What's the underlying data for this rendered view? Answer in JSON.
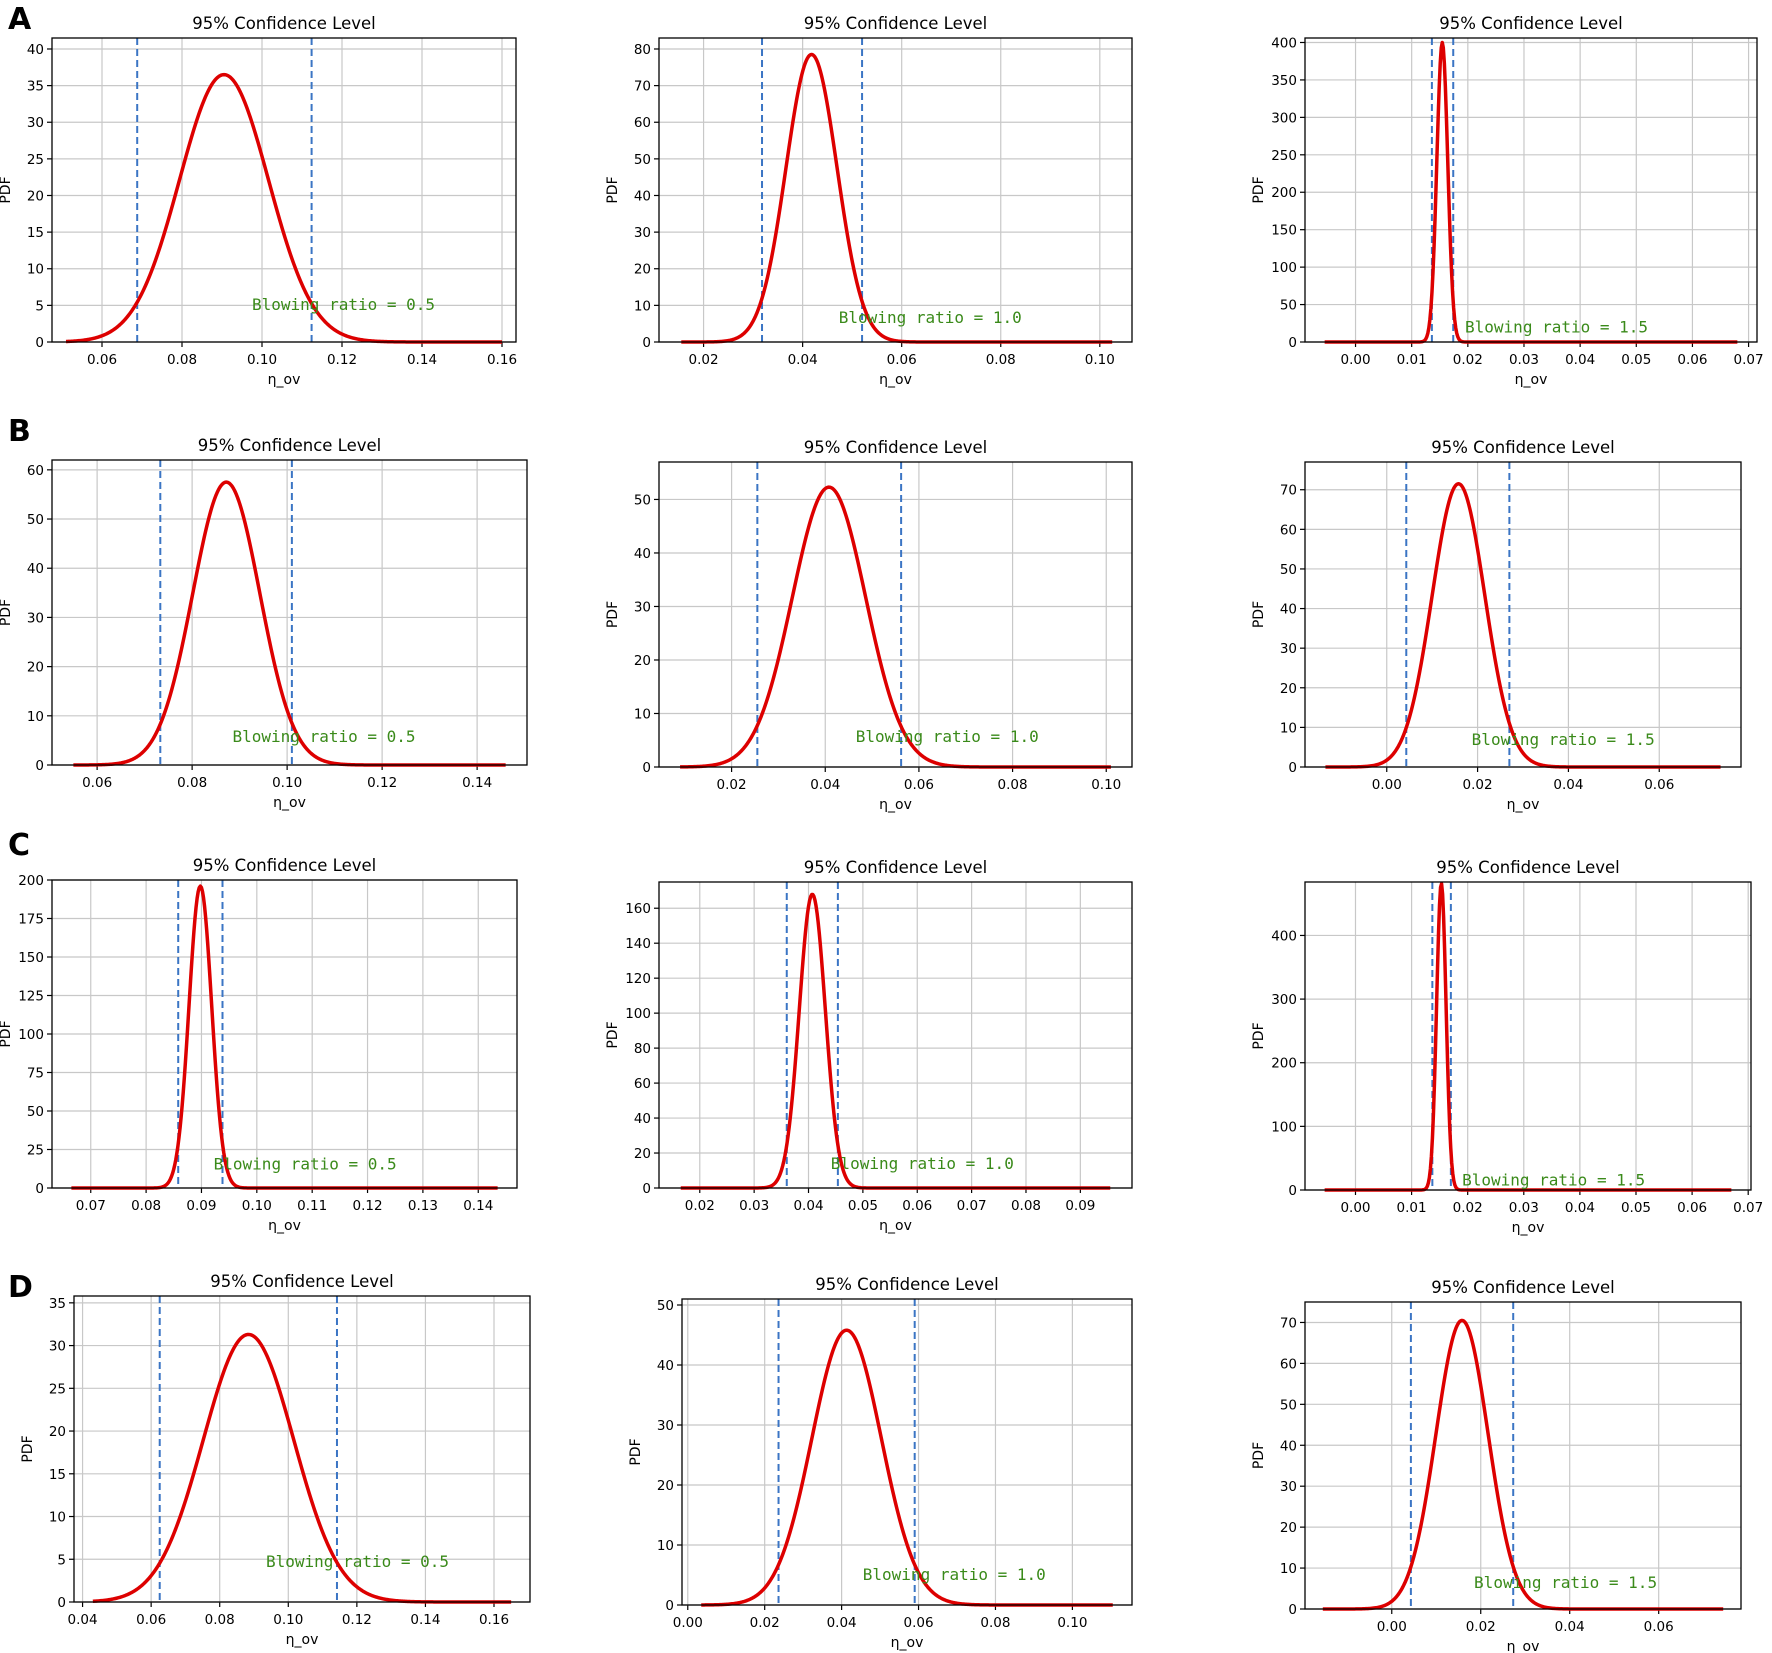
{
  "row_labels": [
    "A",
    "B",
    "C",
    "D"
  ],
  "colors": {
    "curve": "#dd0000",
    "ci_line": "#3b75c4",
    "annotation": "#3a8a1a",
    "grid": "#c8c8c8",
    "axis": "#000000"
  },
  "chart_data": [
    {
      "row": "A",
      "type": "line",
      "title": "95% Confidence Level",
      "xlabel": "η_ov",
      "ylabel": "PDF",
      "annotation": "Blowing ratio = 0.5",
      "mean": 0.0905,
      "peak": 36.5,
      "ci": [
        0.0688,
        0.1124
      ],
      "curve_x": [
        0.051,
        0.16
      ],
      "xlim": [
        0.0475,
        0.1635
      ],
      "ylim": [
        0,
        41.5
      ],
      "xticks": [
        "0.06",
        "0.08",
        "0.10",
        "0.12",
        "0.14",
        "0.16"
      ],
      "yticks": [
        "0",
        "5",
        "10",
        "15",
        "20",
        "25",
        "30",
        "35",
        "40"
      ],
      "annotation_at": [
        0.0975,
        4.4
      ]
    },
    {
      "row": "A",
      "type": "line",
      "title": "95% Confidence Level",
      "xlabel": "η_ov",
      "ylabel": "PDF",
      "annotation": "Blowing ratio = 1.0",
      "mean": 0.0418,
      "peak": 78.5,
      "ci": [
        0.0318,
        0.052
      ],
      "curve_x": [
        0.0155,
        0.1025
      ],
      "xlim": [
        0.011,
        0.1065
      ],
      "ylim": [
        0,
        83
      ],
      "xticks": [
        "0.02",
        "0.04",
        "0.06",
        "0.08",
        "0.10"
      ],
      "yticks": [
        "0",
        "10",
        "20",
        "30",
        "40",
        "50",
        "60",
        "70",
        "80"
      ],
      "annotation_at": [
        0.0473,
        5.2
      ]
    },
    {
      "row": "A",
      "type": "line",
      "title": "95% Confidence Level",
      "xlabel": "η_ov",
      "ylabel": "PDF",
      "annotation": "Blowing ratio = 1.5",
      "mean": 0.01545,
      "peak": 400,
      "ci": [
        0.0136,
        0.0174
      ],
      "curve_x": [
        -0.0055,
        0.068
      ],
      "xlim": [
        -0.009,
        0.0715
      ],
      "ylim": [
        0,
        406
      ],
      "xticks": [
        "0.00",
        "0.01",
        "0.02",
        "0.03",
        "0.04",
        "0.05",
        "0.06",
        "0.07"
      ],
      "yticks": [
        "0",
        "50",
        "100",
        "150",
        "200",
        "250",
        "300",
        "350",
        "400"
      ],
      "annotation_at": [
        0.0195,
        13
      ]
    },
    {
      "row": "B",
      "type": "line",
      "title": "95% Confidence Level",
      "xlabel": "η_ov",
      "ylabel": "PDF",
      "annotation": "Blowing ratio = 0.5",
      "mean": 0.0872,
      "peak": 57.5,
      "ci": [
        0.0733,
        0.101
      ],
      "curve_x": [
        0.055,
        0.146
      ],
      "xlim": [
        0.0505,
        0.1505
      ],
      "ylim": [
        0,
        62
      ],
      "xticks": [
        "0.06",
        "0.08",
        "0.10",
        "0.12",
        "0.14"
      ],
      "yticks": [
        "0",
        "10",
        "20",
        "30",
        "40",
        "50",
        "60"
      ],
      "annotation_at": [
        0.0885,
        4.7
      ]
    },
    {
      "row": "B",
      "type": "line",
      "title": "95% Confidence Level",
      "xlabel": "η_ov",
      "ylabel": "PDF",
      "annotation": "Blowing ratio = 1.0",
      "mean": 0.0408,
      "peak": 52.3,
      "ci": [
        0.0255,
        0.0562
      ],
      "curve_x": [
        0.009,
        0.101
      ],
      "xlim": [
        0.0045,
        0.1055
      ],
      "ylim": [
        0,
        57
      ],
      "xticks": [
        "0.02",
        "0.04",
        "0.06",
        "0.08",
        "0.10"
      ],
      "yticks": [
        "0",
        "10",
        "20",
        "30",
        "40",
        "50"
      ],
      "annotation_at": [
        0.0465,
        4.7
      ]
    },
    {
      "row": "B",
      "type": "line",
      "title": "95% Confidence Level",
      "xlabel": "η_ov",
      "ylabel": "PDF",
      "annotation": "Blowing ratio = 1.5",
      "mean": 0.0158,
      "peak": 71.5,
      "ci": [
        0.0043,
        0.027
      ],
      "curve_x": [
        -0.0135,
        0.0735
      ],
      "xlim": [
        -0.018,
        0.078
      ],
      "ylim": [
        0,
        77
      ],
      "xticks": [
        "0.00",
        "0.02",
        "0.04",
        "0.06"
      ],
      "yticks": [
        "0",
        "10",
        "20",
        "30",
        "40",
        "50",
        "60",
        "70"
      ],
      "annotation_at": [
        0.0187,
        5.5
      ]
    },
    {
      "row": "C",
      "type": "line",
      "title": "95% Confidence Level",
      "xlabel": "η_ov",
      "ylabel": "PDF",
      "annotation": "Blowing ratio = 0.5",
      "mean": 0.0898,
      "peak": 196,
      "ci": [
        0.0858,
        0.0938
      ],
      "curve_x": [
        0.0665,
        0.1435
      ],
      "xlim": [
        0.063,
        0.147
      ],
      "ylim": [
        0,
        200
      ],
      "xticks": [
        "0.07",
        "0.08",
        "0.09",
        "0.10",
        "0.11",
        "0.12",
        "0.13",
        "0.14"
      ],
      "yticks": [
        "0",
        "25",
        "50",
        "75",
        "100",
        "125",
        "150",
        "175",
        "200"
      ],
      "annotation_at": [
        0.0922,
        12
      ]
    },
    {
      "row": "C",
      "type": "line",
      "title": "95% Confidence Level",
      "xlabel": "η_ov",
      "ylabel": "PDF",
      "annotation": "Blowing ratio = 1.0",
      "mean": 0.0407,
      "peak": 168,
      "ci": [
        0.036,
        0.0454
      ],
      "curve_x": [
        0.0165,
        0.0955
      ],
      "xlim": [
        0.0125,
        0.0995
      ],
      "ylim": [
        0,
        175
      ],
      "xticks": [
        "0.02",
        "0.03",
        "0.04",
        "0.05",
        "0.06",
        "0.07",
        "0.08",
        "0.09"
      ],
      "yticks": [
        "0",
        "20",
        "40",
        "60",
        "80",
        "100",
        "120",
        "140",
        "160"
      ],
      "annotation_at": [
        0.0441,
        11
      ]
    },
    {
      "row": "C",
      "type": "line",
      "title": "95% Confidence Level",
      "xlabel": "η_ov",
      "ylabel": "PDF",
      "annotation": "Blowing ratio = 1.5",
      "mean": 0.0153,
      "peak": 482,
      "ci": [
        0.0137,
        0.017
      ],
      "curve_x": [
        -0.0055,
        0.067
      ],
      "xlim": [
        -0.009,
        0.0705
      ],
      "ylim": [
        0,
        484
      ],
      "xticks": [
        "0.00",
        "0.01",
        "0.02",
        "0.03",
        "0.04",
        "0.05",
        "0.06",
        "0.07"
      ],
      "yticks": [
        "0",
        "100",
        "200",
        "300",
        "400"
      ],
      "annotation_at": [
        0.019,
        7
      ]
    },
    {
      "row": "D",
      "type": "line",
      "title": "95% Confidence Level",
      "xlabel": "η_ov",
      "ylabel": "PDF",
      "annotation": "Blowing ratio = 0.5",
      "mean": 0.0884,
      "peak": 31.3,
      "ci": [
        0.0625,
        0.1142
      ],
      "curve_x": [
        0.043,
        0.165
      ],
      "xlim": [
        0.0375,
        0.1705
      ],
      "ylim": [
        0,
        35.8
      ],
      "xticks": [
        "0.04",
        "0.06",
        "0.08",
        "0.10",
        "0.12",
        "0.14",
        "0.16"
      ],
      "yticks": [
        "0",
        "5",
        "10",
        "15",
        "20",
        "25",
        "30",
        "35"
      ],
      "annotation_at": [
        0.0935,
        4.1
      ]
    },
    {
      "row": "D",
      "type": "line",
      "title": "95% Confidence Level",
      "xlabel": "η_ov",
      "ylabel": "PDF",
      "annotation": "Blowing ratio = 1.0",
      "mean": 0.0413,
      "peak": 45.8,
      "ci": [
        0.0236,
        0.059
      ],
      "curve_x": [
        0.0035,
        0.1105
      ],
      "xlim": [
        -0.0015,
        0.1155
      ],
      "ylim": [
        0,
        51
      ],
      "xticks": [
        "0.00",
        "0.02",
        "0.04",
        "0.06",
        "0.08",
        "0.10"
      ],
      "yticks": [
        "0",
        "10",
        "20",
        "30",
        "40",
        "50"
      ],
      "annotation_at": [
        0.0455,
        4.2
      ]
    },
    {
      "row": "D",
      "type": "line",
      "title": "95% Confidence Level",
      "xlabel": "η_ov",
      "ylabel": "PDF",
      "annotation": "Blowing ratio = 1.5",
      "mean": 0.0158,
      "peak": 70.5,
      "ci": [
        0.0043,
        0.0273
      ],
      "curve_x": [
        -0.0155,
        0.0745
      ],
      "xlim": [
        -0.0195,
        0.0785
      ],
      "ylim": [
        0,
        75
      ],
      "xticks": [
        "0.00",
        "0.02",
        "0.04",
        "0.06"
      ],
      "yticks": [
        "0",
        "10",
        "20",
        "30",
        "40",
        "50",
        "60",
        "70"
      ],
      "annotation_at": [
        0.0185,
        5.1
      ]
    }
  ]
}
